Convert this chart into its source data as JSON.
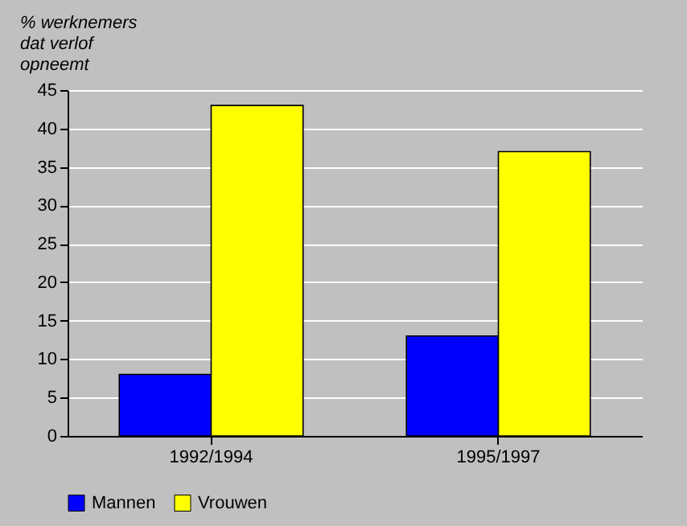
{
  "chart_data": {
    "type": "bar",
    "ylabel": "% werknemers dat verlof opneemt",
    "categories": [
      "1992/1994",
      "1995/1997"
    ],
    "series": [
      {
        "name": "Mannen",
        "color": "#0000ff",
        "values": [
          8,
          13
        ]
      },
      {
        "name": "Vrouwen",
        "color": "#ffff00",
        "values": [
          43,
          37
        ]
      }
    ],
    "ylim": [
      0,
      45
    ],
    "yticks": [
      0,
      5,
      10,
      15,
      20,
      25,
      30,
      35,
      40,
      45
    ],
    "grid": "y",
    "legend": "bottom"
  }
}
